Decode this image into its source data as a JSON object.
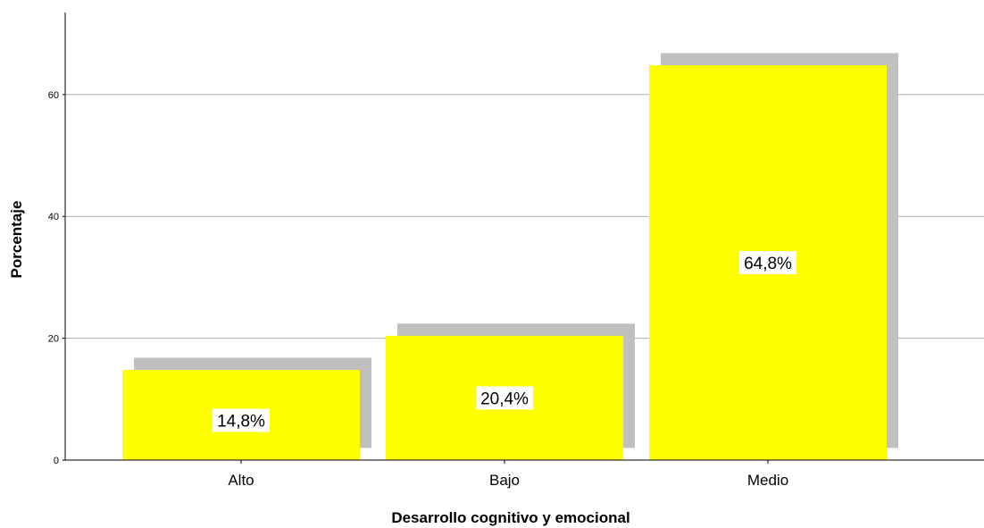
{
  "chart_data": {
    "type": "bar",
    "title": "",
    "xlabel": "Desarrollo cognitivo y emocional",
    "ylabel": "Porcentaje",
    "categories": [
      "Alto",
      "Bajo",
      "Medio"
    ],
    "values": [
      14.8,
      20.4,
      64.8
    ],
    "data_labels": [
      "14,8%",
      "20,4%",
      "64,8%"
    ],
    "ylim": [
      0,
      72
    ],
    "yticks": [
      0,
      20,
      40,
      60
    ],
    "ytick_labels": [
      "0",
      "20",
      "40",
      "60"
    ],
    "grid": true,
    "legend": "none",
    "colors": {
      "bar": "#ffff00",
      "shadow": "#c0c0c0",
      "grid": "#b0b0b0",
      "axis": "#000000",
      "label_box": "#ffffff"
    }
  }
}
